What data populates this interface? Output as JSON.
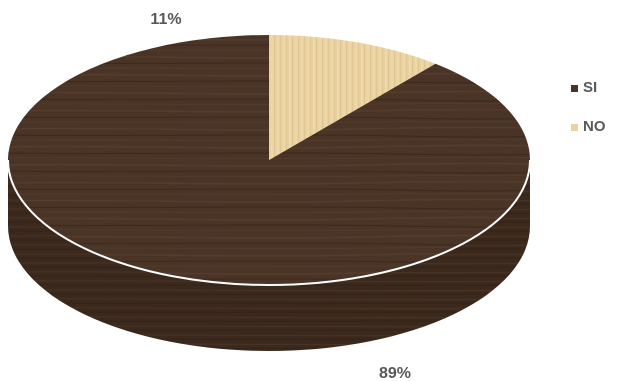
{
  "chart_data": {
    "type": "pie",
    "style": "3d",
    "slices": [
      {
        "label": "SI",
        "value": 89,
        "value_label": "89%",
        "color": "#4a3426"
      },
      {
        "label": "NO",
        "value": 11,
        "value_label": "11%",
        "color": "#e9d2a0"
      }
    ],
    "legend": {
      "position": "right",
      "items": [
        {
          "label": "SI",
          "color": "#4a3426"
        },
        {
          "label": "NO",
          "color": "#e9d2a0"
        }
      ]
    },
    "colors": {
      "label_text": "#595959",
      "pie_side": "#3b291d",
      "pie_edge": "#ffffff"
    }
  }
}
